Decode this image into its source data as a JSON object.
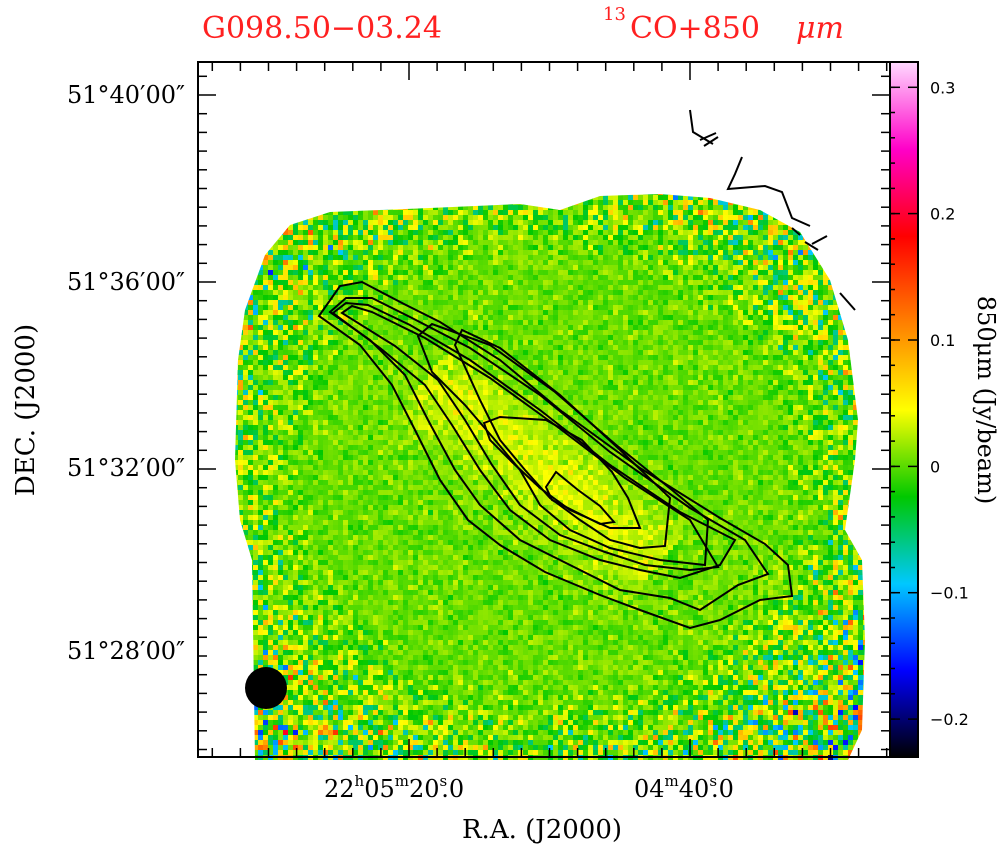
{
  "chart_data": {
    "type": "heatmap",
    "source_name": "G098.50−03.24",
    "tracer_label": {
      "sup": "13",
      "text": "CO+850",
      "unit": "μm"
    },
    "xlabel": "R.A. (J2000)",
    "ylabel": "DEC. (J2000)",
    "x_ticks": [
      {
        "h": "22",
        "m": "05",
        "s": "20",
        "frac": "0",
        "label": "22h05m20.0s"
      },
      {
        "m": "04",
        "s": "40",
        "frac": "0",
        "label": "04m40.0s"
      }
    ],
    "y_ticks": [
      "51°40′00″",
      "51°36′00″",
      "51°32′00″",
      "51°28′00″"
    ],
    "colorbar": {
      "label": "850μm (Jy/beam)",
      "range": [
        -0.23,
        0.32
      ],
      "ticks": [
        "0.3",
        "0.2",
        "0.1",
        "0",
        "−0.1",
        "−0.2"
      ],
      "tick_values": [
        0.3,
        0.2,
        0.1,
        0,
        -0.1,
        -0.2
      ],
      "colormap": [
        "#000000",
        "#0000ff",
        "#00c8ff",
        "#00c800",
        "#ffff00",
        "#ff8000",
        "#ff0000",
        "#ff00c8",
        "#ffd8ff"
      ]
    },
    "contours": {
      "tracer": "13CO",
      "levels": 6
    },
    "beam": "filled circle, lower-left"
  }
}
